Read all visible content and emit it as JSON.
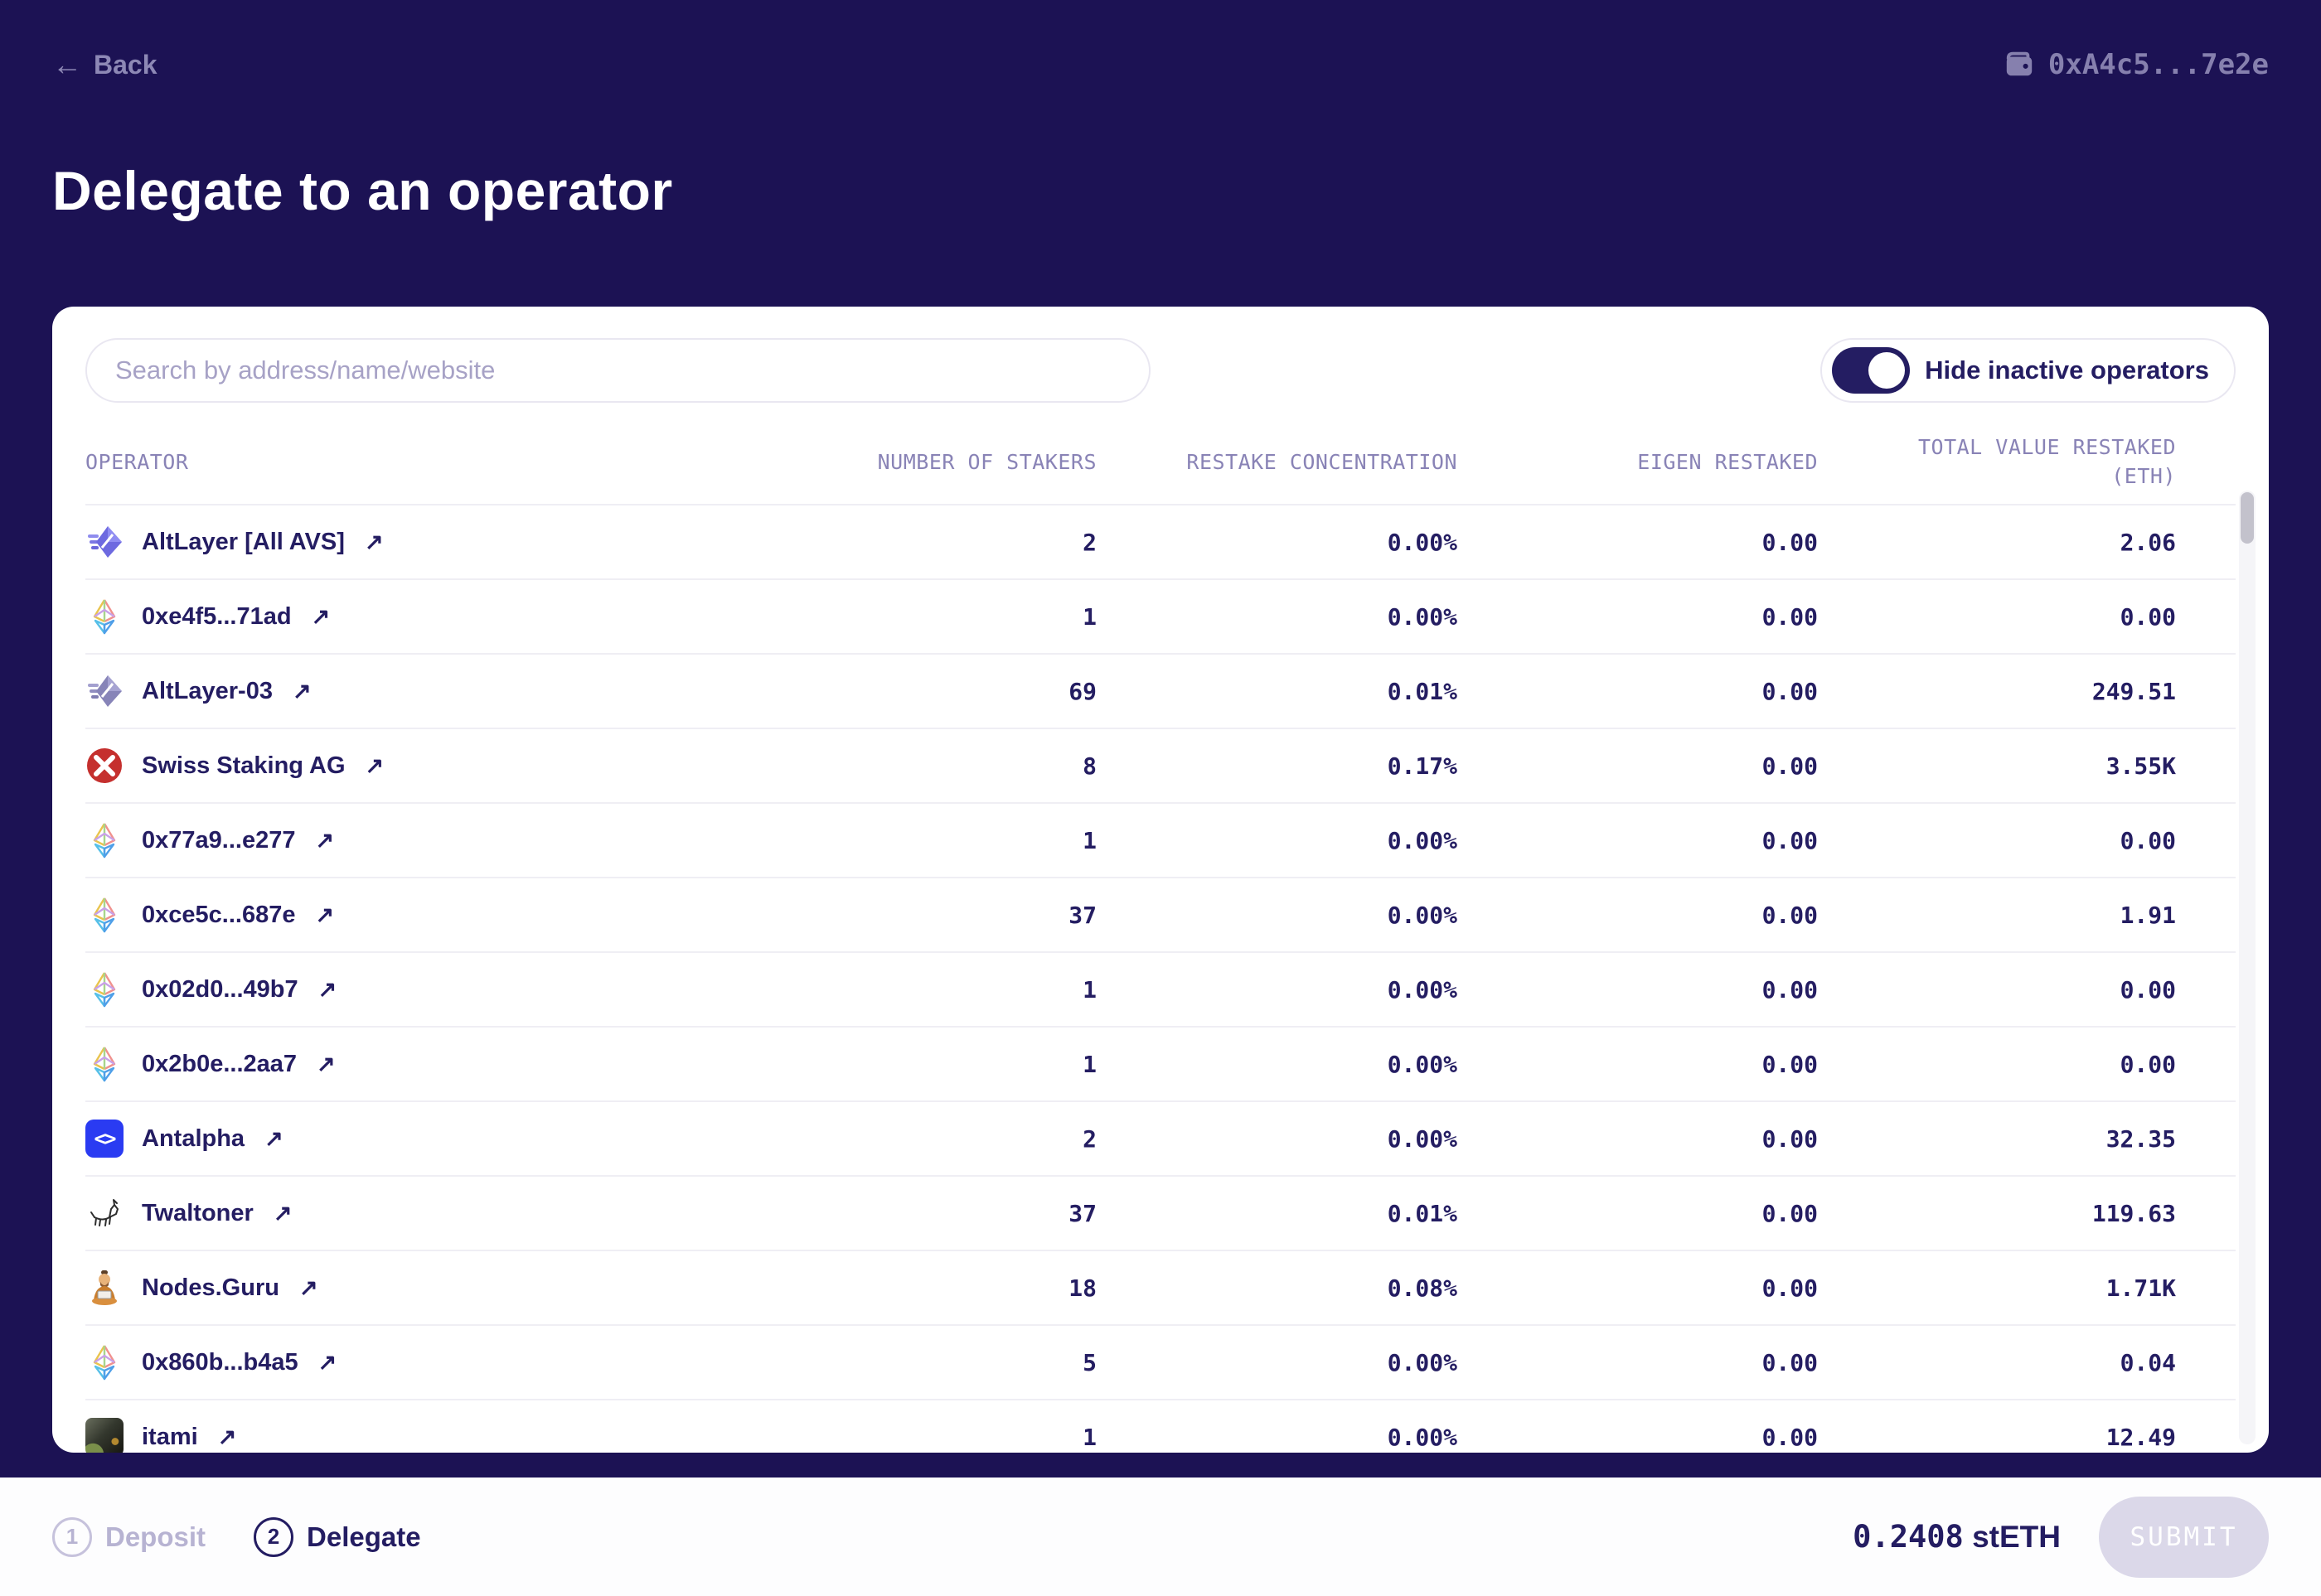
{
  "header": {
    "back_label": "Back",
    "wallet_address": "0xA4c5...7e2e"
  },
  "title": "Delegate to an operator",
  "panel": {
    "search_placeholder": "Search by address/name/website",
    "toggle_label": "Hide inactive operators",
    "toggle_on": true,
    "columns": [
      "OPERATOR",
      "NUMBER OF STAKERS",
      "RESTAKE CONCENTRATION",
      "EIGEN RESTAKED"
    ],
    "total_column": {
      "line1": "TOTAL VALUE RESTAKED",
      "line2": "(ETH)"
    },
    "rows": [
      {
        "name": "AltLayer [All AVS]",
        "icon": "altlayer",
        "stakers": "2",
        "concentration": "0.00%",
        "eigen": "0.00",
        "total": "2.06"
      },
      {
        "name": "0xe4f5...71ad",
        "icon": "eth",
        "stakers": "1",
        "concentration": "0.00%",
        "eigen": "0.00",
        "total": "0.00"
      },
      {
        "name": "AltLayer-03",
        "icon": "altlayer-muted",
        "stakers": "69",
        "concentration": "0.01%",
        "eigen": "0.00",
        "total": "249.51"
      },
      {
        "name": "Swiss Staking AG",
        "icon": "swiss-staking",
        "stakers": "8",
        "concentration": "0.17%",
        "eigen": "0.00",
        "total": "3.55K"
      },
      {
        "name": "0x77a9...e277",
        "icon": "eth",
        "stakers": "1",
        "concentration": "0.00%",
        "eigen": "0.00",
        "total": "0.00"
      },
      {
        "name": "0xce5c...687e",
        "icon": "eth",
        "stakers": "37",
        "concentration": "0.00%",
        "eigen": "0.00",
        "total": "1.91"
      },
      {
        "name": "0x02d0...49b7",
        "icon": "eth",
        "stakers": "1",
        "concentration": "0.00%",
        "eigen": "0.00",
        "total": "0.00"
      },
      {
        "name": "0x2b0e...2aa7",
        "icon": "eth",
        "stakers": "1",
        "concentration": "0.00%",
        "eigen": "0.00",
        "total": "0.00"
      },
      {
        "name": "Antalpha",
        "icon": "antalpha",
        "stakers": "2",
        "concentration": "0.00%",
        "eigen": "0.00",
        "total": "32.35"
      },
      {
        "name": "Twaltoner",
        "icon": "twaltoner",
        "stakers": "37",
        "concentration": "0.01%",
        "eigen": "0.00",
        "total": "119.63"
      },
      {
        "name": "Nodes.Guru",
        "icon": "nodes-guru",
        "stakers": "18",
        "concentration": "0.08%",
        "eigen": "0.00",
        "total": "1.71K"
      },
      {
        "name": "0x860b...b4a5",
        "icon": "eth",
        "stakers": "5",
        "concentration": "0.00%",
        "eigen": "0.00",
        "total": "0.04"
      },
      {
        "name": "itami",
        "icon": "itami",
        "stakers": "1",
        "concentration": "0.00%",
        "eigen": "0.00",
        "total": "12.49"
      }
    ]
  },
  "footer": {
    "steps": [
      {
        "number": "1",
        "label": "Deposit",
        "active": false
      },
      {
        "number": "2",
        "label": "Delegate",
        "active": true
      }
    ],
    "amount": "0.2408",
    "token": "stETH",
    "submit_label": "SUBMIT"
  },
  "colors": {
    "background_navy": "#1c1254",
    "card_white": "#ffffff",
    "text_navy": "#241d62",
    "muted_purple": "#8d88b5",
    "header_purple": "#8983b6",
    "divider": "#efeef4",
    "swiss_staking_red": "#c5302e",
    "antalpha_blue": "#2a3bf2",
    "submit_disabled_bg": "#dbd8e9"
  }
}
